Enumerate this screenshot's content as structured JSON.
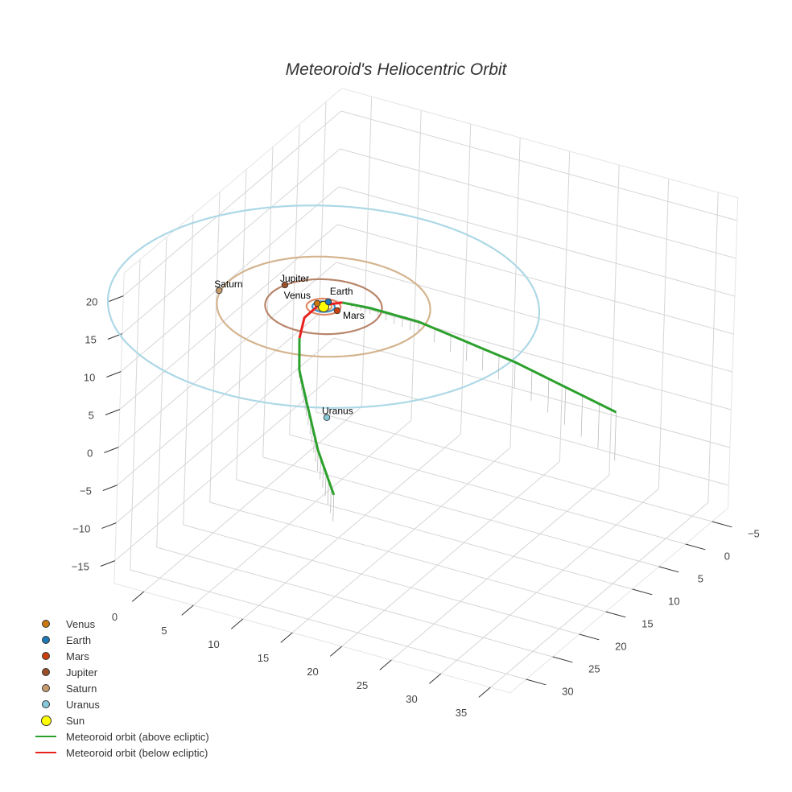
{
  "chart_data": {
    "type": "scatter3d",
    "title": "Meteoroid's Heliocentric Orbit",
    "axes": {
      "x": {
        "ticks": [
          0,
          5,
          10,
          15,
          20,
          25,
          30,
          35
        ],
        "range": [
          -3,
          37
        ]
      },
      "y": {
        "ticks": [
          -5,
          0,
          5,
          10,
          15,
          20,
          25,
          30
        ],
        "range": [
          -8,
          33
        ]
      },
      "z": {
        "ticks": [
          -15,
          -10,
          -5,
          0,
          5,
          10,
          15,
          20
        ],
        "range": [
          -18,
          23
        ]
      }
    },
    "tick_labels": {
      "x": [
        "0",
        "5",
        "10",
        "15",
        "20",
        "25",
        "30",
        "35"
      ],
      "y": [
        "−5",
        "0",
        "5",
        "10",
        "15",
        "20",
        "25",
        "30"
      ],
      "z": [
        "−15",
        "−10",
        "−5",
        "0",
        "5",
        "10",
        "15",
        "20"
      ]
    },
    "planets": [
      {
        "name": "Venus",
        "pos": [
          -0.78,
          -0.24,
          0
        ],
        "orbit_radius": 0.72,
        "color": "#c8780f",
        "orbit_color": "#e0a060"
      },
      {
        "name": "Earth",
        "pos": [
          -0.07,
          -1.03,
          0
        ],
        "orbit_radius": 1.0,
        "color": "#1f77b4",
        "orbit_color": "#3f8fc8"
      },
      {
        "name": "Mars",
        "pos": [
          1.4,
          0.04,
          0
        ],
        "orbit_radius": 1.52,
        "color": "#c8400e",
        "orbit_color": "#e08a66"
      },
      {
        "name": "Jupiter",
        "pos": [
          -4.9,
          -1.85,
          0
        ],
        "orbit_radius": 5.2,
        "color": "#9a4f2a",
        "orbit_color": "#b8856a"
      },
      {
        "name": "Saturn",
        "pos": [
          -9.4,
          2.14,
          0
        ],
        "orbit_radius": 9.5,
        "color": "#c69c6d",
        "orbit_color": "#d4b48e"
      },
      {
        "name": "Uranus",
        "pos": [
          10.2,
          18.4,
          0
        ],
        "orbit_radius": 19.2,
        "color": "#87c8da",
        "orbit_color": "#add8e6"
      }
    ],
    "sun": {
      "name": "Sun",
      "pos": [
        0,
        0,
        0
      ],
      "color": "#ffff00"
    },
    "meteoroid": {
      "above_color": "#2ca02c",
      "below_color": "#e8221e",
      "above_1": [
        [
          36,
          12.3,
          6.4
        ],
        [
          21.9,
          4.9,
          3.5
        ],
        [
          9.6,
          0.05,
          1.5
        ],
        [
          4.2,
          -0.9,
          0.8
        ],
        [
          1.2,
          -1.3,
          0.2
        ]
      ],
      "below": [
        [
          1.2,
          -1.3,
          0.2
        ],
        [
          -0.7,
          -0.3,
          -0.3
        ],
        [
          -0.8,
          2.1,
          -0.5
        ],
        [
          1.0,
          6.4,
          0
        ]
      ],
      "above_2": [
        [
          1.0,
          6.4,
          0
        ],
        [
          4.5,
          13,
          1
        ],
        [
          8.5,
          19.1,
          1.8
        ],
        [
          14.3,
          27.8,
          2.7
        ],
        [
          20,
          35.5,
          3.5
        ]
      ]
    },
    "legend": [
      {
        "label": "Venus",
        "kind": "dot",
        "color": "#c8780f"
      },
      {
        "label": "Earth",
        "kind": "dot",
        "color": "#1f77b4"
      },
      {
        "label": "Mars",
        "kind": "dot",
        "color": "#c8400e"
      },
      {
        "label": "Jupiter",
        "kind": "dot",
        "color": "#9a4f2a"
      },
      {
        "label": "Saturn",
        "kind": "dot",
        "color": "#c69c6d"
      },
      {
        "label": "Uranus",
        "kind": "dot",
        "color": "#87c8da"
      },
      {
        "label": "Sun",
        "kind": "sun",
        "color": "#ffff00"
      },
      {
        "label": "Meteoroid orbit (above ecliptic)",
        "kind": "line",
        "color": "#2ca02c"
      },
      {
        "label": "Meteoroid orbit (below ecliptic)",
        "kind": "line",
        "color": "#e8221e"
      }
    ],
    "legend_position": "bottom-left"
  }
}
